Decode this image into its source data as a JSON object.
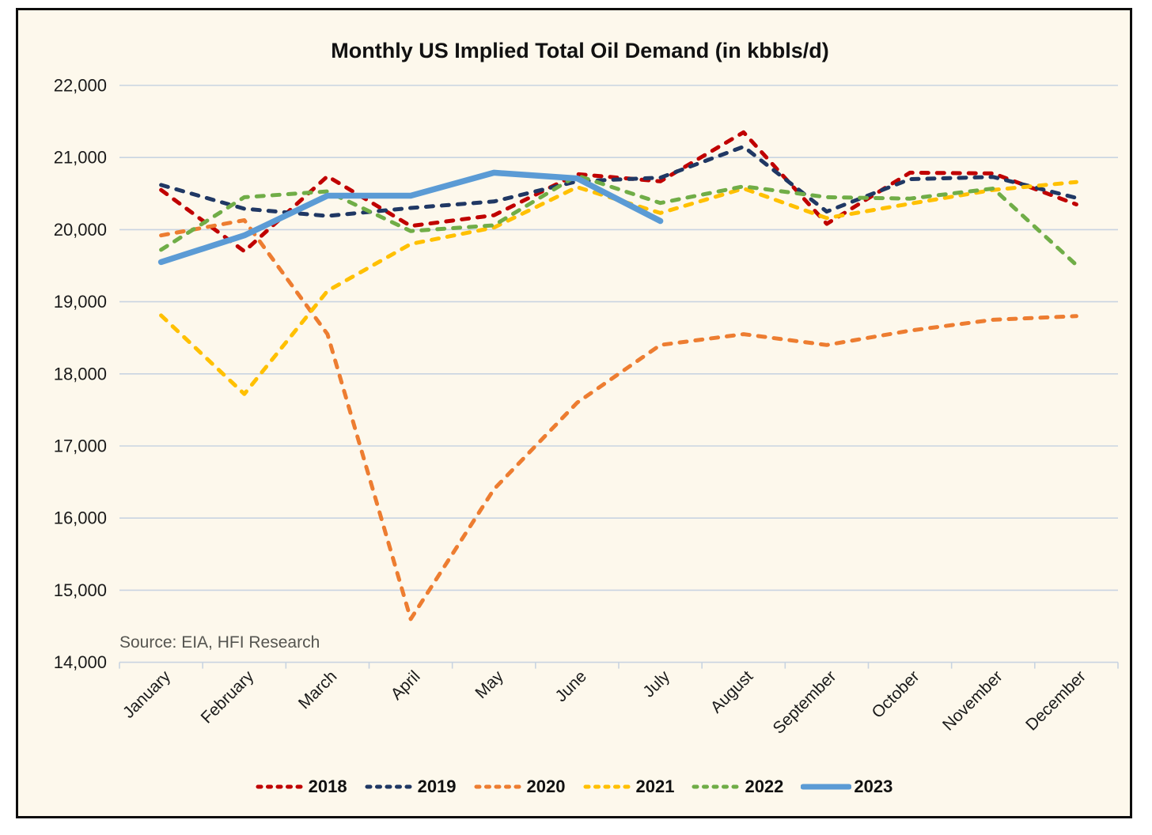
{
  "page": {
    "title": "Monthly US Implied Total Oil Demand (in kbbls/d)",
    "source": "Source: EIA, HFI Research"
  },
  "colors": {
    "background": "#FDF8EC",
    "frame_border": "#0d0d0d",
    "gridline": "#C9D4E1",
    "axis_text": "#1a1a1a",
    "source_text": "#555550"
  },
  "chart_data": {
    "type": "line",
    "title": "Monthly US Implied Total Oil Demand (in kbbls/d)",
    "xlabel": "",
    "ylabel": "",
    "unit": "kbbls/d",
    "ylim": [
      14000,
      22000
    ],
    "y_tick_step": 1000,
    "y_tick_labels": [
      "22,000",
      "21,000",
      "20,000",
      "19,000",
      "18,000",
      "17,000",
      "16,000",
      "15,000",
      "14,000"
    ],
    "grid": true,
    "x_label_rotation": -45,
    "legend_position": "bottom",
    "categories": [
      "January",
      "February",
      "March",
      "April",
      "May",
      "June",
      "July",
      "August",
      "September",
      "October",
      "November",
      "December"
    ],
    "series": [
      {
        "name": "2018",
        "color": "#C00000",
        "style": "dashed",
        "values": [
          20550,
          19700,
          20740,
          20050,
          20200,
          20770,
          20670,
          21350,
          20080,
          20790,
          20780,
          20350
        ]
      },
      {
        "name": "2019",
        "color": "#203864",
        "style": "dashed",
        "values": [
          20620,
          20290,
          20190,
          20300,
          20390,
          20670,
          20720,
          21150,
          20250,
          20700,
          20730,
          20440
        ]
      },
      {
        "name": "2020",
        "color": "#ED7D31",
        "style": "dashed",
        "values": [
          19920,
          20130,
          18550,
          14600,
          16400,
          17600,
          18400,
          18550,
          18400,
          18600,
          18750,
          18800
        ]
      },
      {
        "name": "2021",
        "color": "#FFC000",
        "style": "dashed",
        "values": [
          18810,
          17720,
          19150,
          19800,
          20030,
          20590,
          20230,
          20570,
          20160,
          20360,
          20550,
          20660
        ]
      },
      {
        "name": "2022",
        "color": "#70AD47",
        "style": "dashed",
        "values": [
          19720,
          20450,
          20530,
          19980,
          20060,
          20750,
          20370,
          20600,
          20450,
          20430,
          20570,
          19510
        ]
      },
      {
        "name": "2023",
        "color": "#5B9BD5",
        "style": "solid",
        "values": [
          19550,
          19920,
          20470,
          20470,
          20790,
          20710,
          20120
        ]
      }
    ]
  }
}
